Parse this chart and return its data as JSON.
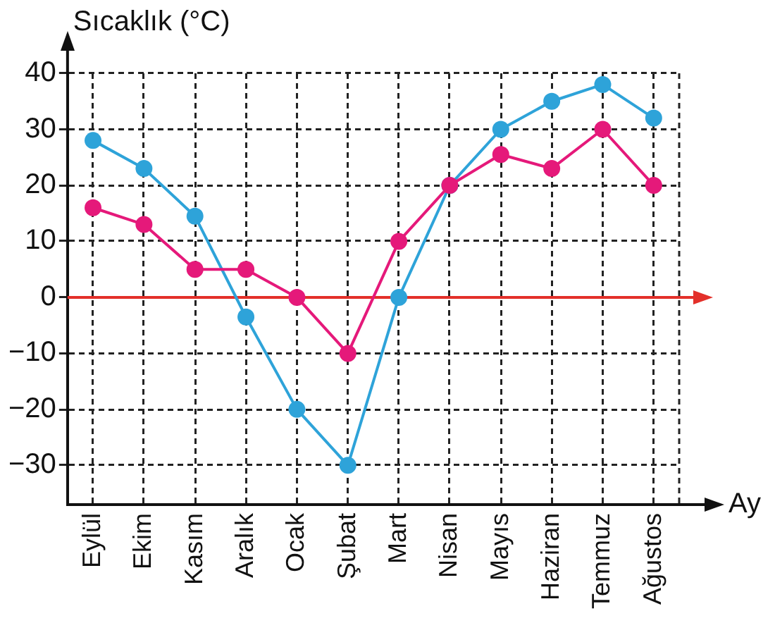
{
  "chart_data": {
    "type": "line",
    "ylabel": "Sıcaklık (°C)",
    "xlabel": "Ay",
    "categories": [
      "Eylül",
      "Ekim",
      "Kasım",
      "Aralık",
      "Ocak",
      "Şubat",
      "Mart",
      "Nisan",
      "Mayıs",
      "Haziran",
      "Temmuz",
      "Ağustos"
    ],
    "series": [
      {
        "color": "#2ea3d9",
        "values": [
          28,
          23,
          14.5,
          -3.5,
          -20,
          -30,
          0,
          20,
          30,
          35,
          38,
          32
        ]
      },
      {
        "color": "#e5197a",
        "values": [
          16,
          13,
          5,
          5,
          0,
          -10,
          10,
          20,
          25.5,
          23,
          30,
          20
        ]
      }
    ],
    "ylim": [
      -37,
      40
    ],
    "yticks": [
      -30,
      -20,
      -10,
      0,
      10,
      20,
      30,
      40
    ],
    "ref_lines": [
      {
        "axis": "y",
        "value": 0,
        "color": "#e3302a"
      }
    ],
    "grid": true,
    "legend": false,
    "marker": "circle",
    "line_style": "solid"
  }
}
